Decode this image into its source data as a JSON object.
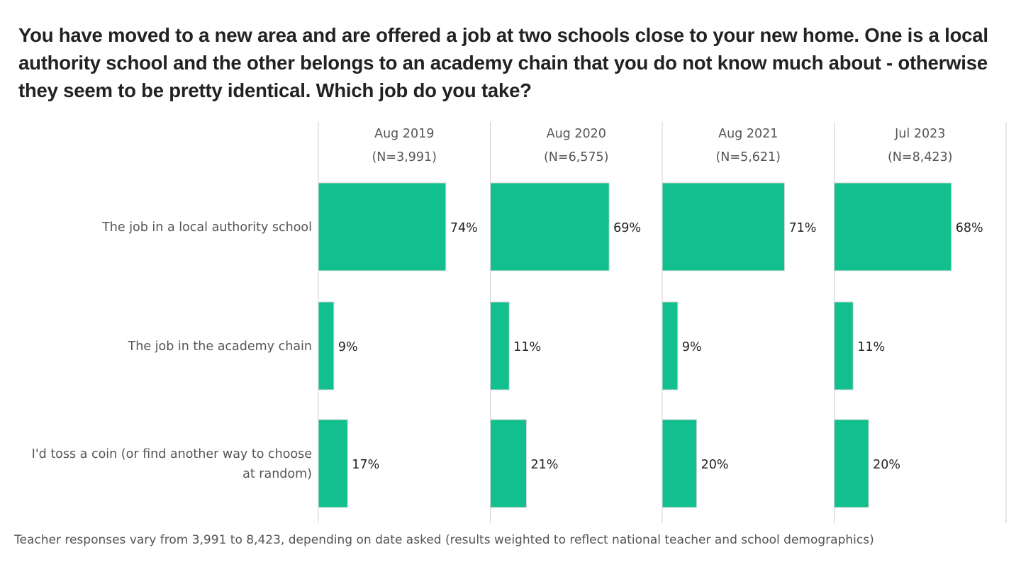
{
  "title": "You have moved to a new area and are offered a job at two schools close to your new home. One is a local authority school and the other belongs to an academy chain that you do not know much about - otherwise they seem to be pretty identical. Which job do you take?",
  "footnote": "Teacher responses vary from 3,991 to 8,423, depending on date asked (results weighted to reflect national teacher and school demographics)",
  "colors": {
    "bar": "#12BF8F",
    "bar_edge": "#d8d8d8",
    "divider": "#d0d0d0",
    "text": "#222222",
    "muted": "#555555"
  },
  "chart_data": {
    "type": "bar",
    "orientation": "horizontal",
    "categories": [
      "The job in a local authority school",
      "The job in the academy chain",
      "I'd toss a coin (or find another way to choose at random)"
    ],
    "category_lines": [
      [
        "The job in a local authority school"
      ],
      [
        "The job in the academy chain"
      ],
      [
        "I'd toss a coin (or find another way to choose",
        "at random)"
      ]
    ],
    "series": [
      {
        "name": "Aug 2019",
        "n_label": "(N=3,991)",
        "values": [
          74,
          9,
          17
        ],
        "labels": [
          "74%",
          "9%",
          "17%"
        ]
      },
      {
        "name": "Aug 2020",
        "n_label": "(N=6,575)",
        "values": [
          69,
          11,
          21
        ],
        "labels": [
          "69%",
          "11%",
          "21%"
        ]
      },
      {
        "name": "Aug 2021",
        "n_label": "(N=5,621)",
        "values": [
          71,
          9,
          20
        ],
        "labels": [
          "71%",
          "9%",
          "20%"
        ]
      },
      {
        "name": "Jul 2023",
        "n_label": "(N=8,423)",
        "values": [
          68,
          11,
          20
        ],
        "labels": [
          "68%",
          "11%",
          "20%"
        ]
      }
    ],
    "unit": "%",
    "xlim": [
      0,
      100
    ],
    "grid": false,
    "legend": "none"
  }
}
